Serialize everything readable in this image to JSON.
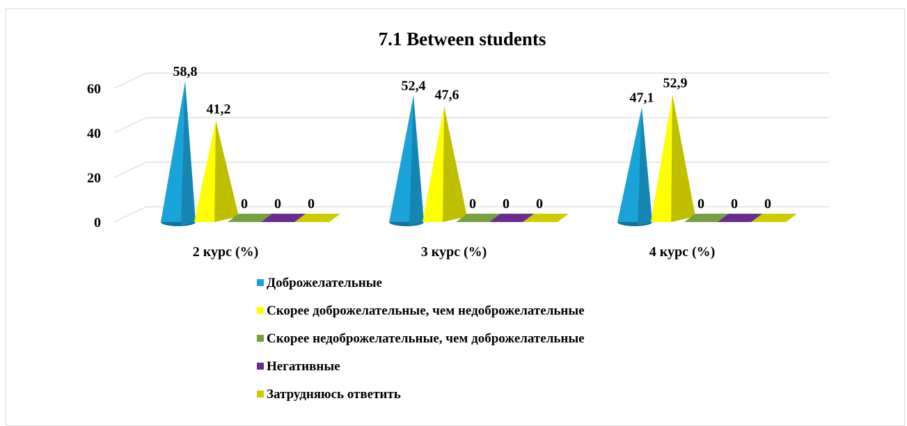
{
  "chart_data": {
    "type": "bar",
    "title": "7.1 Between students",
    "categories": [
      "2 курс (%)",
      "3 курс (%)",
      "4 курс (%)"
    ],
    "yticks": [
      "0",
      "20",
      "40",
      "60"
    ],
    "ylim": [
      0,
      60
    ],
    "grid": true,
    "legend_position": "bottom",
    "series": [
      {
        "name": "Доброжелательные",
        "values": [
          58.8,
          52.4,
          47.1
        ],
        "labels": [
          "58,8",
          "52,4",
          "47,1"
        ],
        "color": "#1aa3d9",
        "shape": "cone"
      },
      {
        "name": "Скорее доброжелательные, чем недоброжелательные",
        "values": [
          41.2,
          47.6,
          52.9
        ],
        "labels": [
          "41,2",
          "47,6",
          "52,9"
        ],
        "color": "#ffff00",
        "shape": "pyramid"
      },
      {
        "name": "Скорее недоброжелательные, чем доброжелательные",
        "values": [
          0,
          0,
          0
        ],
        "labels": [
          "0",
          "0",
          "0"
        ],
        "color": "#77a043",
        "shape": "flat"
      },
      {
        "name": "Негативные",
        "values": [
          0,
          0,
          0
        ],
        "labels": [
          "0",
          "0",
          "0"
        ],
        "color": "#6b2c91",
        "shape": "flat"
      },
      {
        "name": "Затрудняюсь ответить",
        "values": [
          0,
          0,
          0
        ],
        "labels": [
          "0",
          "0",
          "0"
        ],
        "color": "#cccc00",
        "shape": "flat"
      }
    ]
  }
}
